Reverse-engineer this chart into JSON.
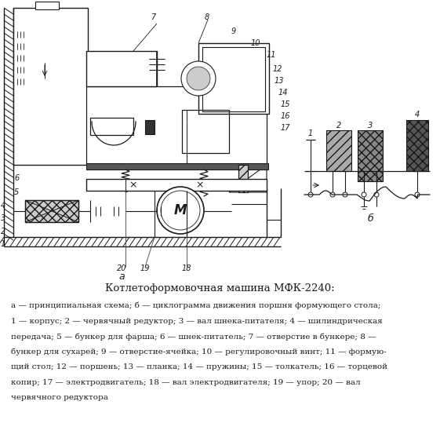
{
  "title": "Котлетоформовочная машина МФК-2240:",
  "caption_lines": [
    "а — принципиальная схема; б — циклограмма движения поршня формующего стола;",
    "1 — корпус; 2 — червячный редуктор; 3 — вал шнека-питателя; 4 — шилиндрическая",
    "передача; 5 — бункер для фарша; 6 — шнек-питатель; 7 — отверстие в бункере; 8 —",
    "бункер для сухарей; 9 — отверстие-ячейка; 10 — регулировочный винт; 11 — формую-",
    "щий стол; 12 — поршень; 13 — планка; 14 — пружины; 15 — толкатель; 16 — торцевой",
    "копир; 17 — электродвигатель; 18 — вал электродвигателя; 19 — упор; 20 — вал",
    "червячного редуктора"
  ],
  "bg_color": "#ffffff",
  "lc": "#1a1a1a"
}
